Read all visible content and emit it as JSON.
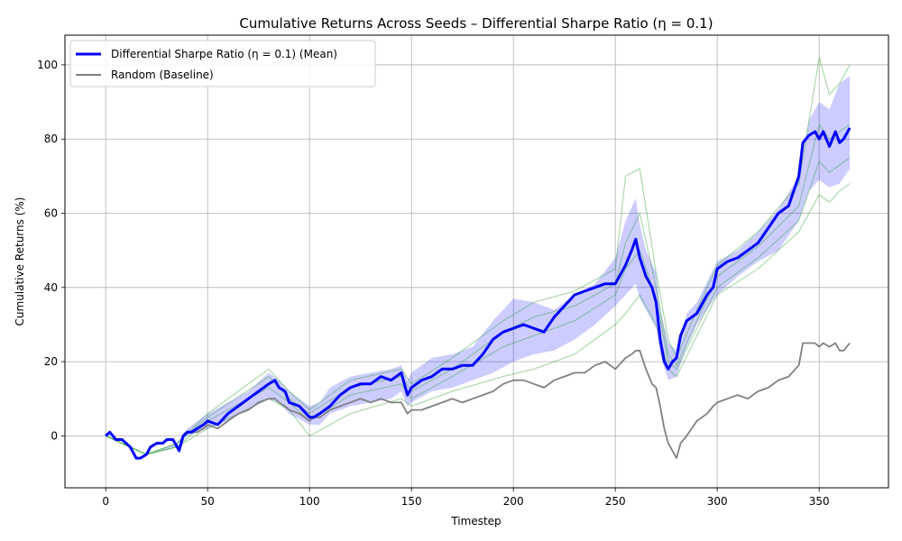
{
  "chart_data": {
    "type": "line",
    "title": "Cumulative Returns Across Seeds – Differential Sharpe Ratio (η = 0.1)",
    "xlabel": "Timestep",
    "ylabel": "Cumulative Returns (%)",
    "xlim": [
      -20,
      384
    ],
    "ylim": [
      -14,
      108
    ],
    "xticks": [
      0,
      50,
      100,
      150,
      200,
      250,
      300,
      350
    ],
    "yticks": [
      0,
      20,
      40,
      60,
      80,
      100
    ],
    "grid": true,
    "legend_position": "top-left",
    "colors": {
      "mean": "#0000ff",
      "band": "#0000ff",
      "seeds": "#2ca02c",
      "baseline": "#808080"
    },
    "legend": [
      {
        "label": "Differential Sharpe Ratio (η = 0.1) (Mean)",
        "series": "mean"
      },
      {
        "label": "Random (Baseline)",
        "series": "baseline"
      }
    ],
    "series": [
      {
        "name": "Differential Sharpe Ratio (η = 0.1) (Mean)",
        "x": [
          0,
          2,
          5,
          8,
          12,
          15,
          17,
          20,
          22,
          25,
          28,
          30,
          33,
          35,
          36,
          38,
          40,
          42,
          45,
          48,
          50,
          55,
          60,
          65,
          70,
          75,
          80,
          83,
          85,
          88,
          90,
          95,
          100,
          102,
          105,
          110,
          115,
          120,
          125,
          130,
          135,
          140,
          145,
          148,
          150,
          155,
          160,
          165,
          170,
          175,
          180,
          185,
          190,
          195,
          200,
          205,
          210,
          215,
          220,
          225,
          230,
          235,
          240,
          245,
          250,
          255,
          258,
          260,
          262,
          265,
          268,
          270,
          272,
          274,
          276,
          278,
          280,
          282,
          285,
          290,
          295,
          298,
          300,
          305,
          310,
          315,
          320,
          325,
          330,
          335,
          340,
          342,
          345,
          348,
          350,
          352,
          355,
          358,
          360,
          362,
          365
        ],
        "values": [
          0,
          1,
          -1,
          -1,
          -3,
          -6,
          -6,
          -5,
          -3,
          -2,
          -2,
          -1,
          -1,
          -3,
          -4,
          0,
          1,
          1,
          2,
          3,
          4,
          3,
          6,
          8,
          10,
          12,
          14,
          15,
          13,
          12,
          9,
          8,
          5,
          5,
          6,
          8,
          11,
          13,
          14,
          14,
          16,
          15,
          17,
          11,
          13,
          15,
          16,
          18,
          18,
          19,
          19,
          22,
          26,
          28,
          29,
          30,
          29,
          28,
          32,
          35,
          38,
          39,
          40,
          41,
          41,
          46,
          50,
          53,
          48,
          43,
          40,
          36,
          26,
          20,
          18,
          20,
          21,
          27,
          31,
          33,
          38,
          40,
          45,
          47,
          48,
          50,
          52,
          56,
          60,
          62,
          70,
          79,
          81,
          82,
          80,
          82,
          78,
          82,
          79,
          80,
          83
        ]
      },
      {
        "name": "Random (Baseline)",
        "x": [
          0,
          2,
          5,
          8,
          12,
          15,
          17,
          20,
          22,
          25,
          28,
          30,
          33,
          35,
          36,
          38,
          40,
          42,
          45,
          48,
          50,
          55,
          60,
          65,
          70,
          75,
          80,
          83,
          85,
          88,
          90,
          95,
          100,
          102,
          105,
          110,
          115,
          120,
          125,
          130,
          135,
          140,
          145,
          148,
          150,
          155,
          160,
          165,
          170,
          175,
          180,
          185,
          190,
          195,
          200,
          205,
          210,
          215,
          220,
          225,
          230,
          235,
          240,
          245,
          250,
          255,
          258,
          260,
          262,
          265,
          268,
          270,
          272,
          274,
          276,
          278,
          280,
          282,
          285,
          290,
          295,
          298,
          300,
          305,
          310,
          315,
          320,
          325,
          330,
          335,
          340,
          342,
          345,
          348,
          350,
          352,
          355,
          358,
          360,
          362,
          365
        ],
        "values": [
          0,
          1,
          -1,
          -1,
          -3,
          -6,
          -6,
          -5,
          -3,
          -2,
          -2,
          -1,
          -1,
          -3,
          -4,
          0,
          1,
          1,
          1,
          2,
          3,
          2,
          4,
          6,
          7,
          9,
          10,
          10,
          9,
          8,
          7,
          6,
          4,
          5,
          5,
          7,
          8,
          9,
          10,
          9,
          10,
          9,
          9,
          6,
          7,
          7,
          8,
          9,
          10,
          9,
          10,
          11,
          12,
          14,
          15,
          15,
          14,
          13,
          15,
          16,
          17,
          17,
          19,
          20,
          18,
          21,
          22,
          23,
          23,
          18,
          14,
          13,
          8,
          2,
          -2,
          -4,
          -6,
          -2,
          0,
          4,
          6,
          8,
          9,
          10,
          11,
          10,
          12,
          13,
          15,
          16,
          19,
          25,
          25,
          25,
          24,
          25,
          24,
          25,
          23,
          23,
          25
        ]
      }
    ],
    "band": {
      "name": "Seed range",
      "x": [
        0,
        10,
        20,
        35,
        40,
        50,
        60,
        70,
        80,
        85,
        90,
        100,
        105,
        110,
        120,
        130,
        140,
        145,
        148,
        150,
        160,
        170,
        180,
        190,
        200,
        210,
        220,
        230,
        240,
        250,
        255,
        260,
        262,
        265,
        270,
        272,
        276,
        280,
        285,
        290,
        300,
        310,
        320,
        330,
        340,
        345,
        350,
        355,
        360,
        365
      ],
      "upper": [
        0,
        -1,
        -5,
        -2,
        2,
        6,
        9,
        12,
        17,
        15,
        12,
        8,
        9,
        13,
        16,
        17,
        18,
        19,
        15,
        17,
        21,
        22,
        24,
        31,
        37,
        36,
        34,
        38,
        41,
        48,
        58,
        64,
        57,
        50,
        44,
        34,
        25,
        23,
        33,
        36,
        47,
        50,
        55,
        61,
        70,
        85,
        90,
        88,
        95,
        97
      ],
      "lower": [
        0,
        -1,
        -5,
        -3,
        0,
        2,
        4,
        7,
        10,
        9,
        6,
        3,
        3,
        6,
        8,
        9,
        10,
        12,
        8,
        9,
        12,
        13,
        15,
        17,
        20,
        22,
        23,
        26,
        30,
        35,
        38,
        41,
        37,
        34,
        29,
        22,
        15,
        16,
        24,
        30,
        38,
        43,
        47,
        50,
        58,
        66,
        69,
        67,
        68,
        72
      ]
    },
    "seeds": [
      {
        "name": "seed-1",
        "x": [
          0,
          20,
          35,
          50,
          80,
          90,
          100,
          120,
          145,
          150,
          170,
          195,
          210,
          230,
          250,
          255,
          262,
          270,
          276,
          280,
          290,
          300,
          320,
          340,
          350,
          355,
          360,
          365
        ],
        "values": [
          0,
          -5,
          -2,
          6,
          18,
          12,
          7,
          15,
          18,
          14,
          21,
          31,
          36,
          39,
          45,
          70,
          72,
          44,
          26,
          21,
          34,
          46,
          55,
          68,
          102,
          92,
          95,
          100
        ]
      },
      {
        "name": "seed-2",
        "x": [
          0,
          20,
          35,
          50,
          80,
          90,
          100,
          120,
          145,
          150,
          170,
          195,
          210,
          230,
          250,
          255,
          262,
          270,
          276,
          280,
          290,
          300,
          320,
          340,
          350,
          355,
          360,
          365
        ],
        "values": [
          0,
          -5,
          -3,
          2,
          10,
          7,
          0,
          6,
          10,
          8,
          12,
          16,
          18,
          22,
          30,
          33,
          38,
          30,
          18,
          16,
          27,
          38,
          45,
          55,
          65,
          63,
          66,
          68
        ]
      },
      {
        "name": "seed-3",
        "x": [
          0,
          20,
          35,
          50,
          80,
          90,
          100,
          120,
          145,
          150,
          170,
          195,
          210,
          230,
          250,
          255,
          262,
          270,
          276,
          280,
          290,
          300,
          320,
          340,
          350,
          355,
          360,
          365
        ],
        "values": [
          0,
          -5,
          -2,
          5,
          16,
          10,
          6,
          13,
          16,
          12,
          18,
          28,
          32,
          35,
          41,
          52,
          60,
          40,
          22,
          19,
          31,
          43,
          51,
          62,
          84,
          80,
          82,
          84
        ]
      },
      {
        "name": "seed-4",
        "x": [
          0,
          20,
          35,
          50,
          80,
          90,
          100,
          120,
          145,
          150,
          170,
          195,
          210,
          230,
          250,
          255,
          262,
          270,
          276,
          280,
          290,
          300,
          320,
          340,
          350,
          355,
          360,
          365
        ],
        "values": [
          0,
          -5,
          -3,
          4,
          13,
          9,
          4,
          11,
          14,
          10,
          16,
          24,
          27,
          31,
          38,
          45,
          50,
          37,
          20,
          18,
          29,
          40,
          48,
          58,
          74,
          71,
          73,
          75
        ]
      }
    ]
  }
}
